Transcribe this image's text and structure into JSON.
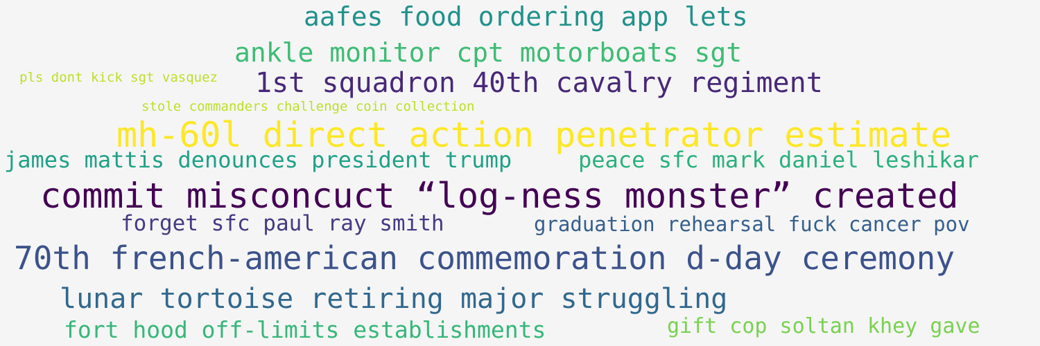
{
  "words": [
    {
      "text": "aafes food ordering app lets",
      "color": "#21918c"
    },
    {
      "text": "ankle monitor cpt motorboats sgt",
      "color": "#3dbc74"
    },
    {
      "text": "pls dont kick sgt vasquez",
      "color": "#bddf26"
    },
    {
      "text": "1st squadron 40th cavalry regiment",
      "color": "#482878"
    },
    {
      "text": "stole commanders challenge coin collection",
      "color": "#bddf26"
    },
    {
      "text": "mh-60l direct action penetrator estimate",
      "color": "#fde725"
    },
    {
      "text": "james mattis denounces president trump",
      "color": "#1fa187"
    },
    {
      "text": "peace sfc mark daniel leshikar",
      "color": "#2ab07f"
    },
    {
      "text": "commit misconcuct “log-ness monster” created",
      "color": "#440154"
    },
    {
      "text": "forget sfc paul ray smith",
      "color": "#443a83"
    },
    {
      "text": "graduation rehearsal fuck cancer pov",
      "color": "#355f8d"
    },
    {
      "text": "70th french-american commemoration d-day ceremony",
      "color": "#3b528b"
    },
    {
      "text": "lunar tortoise retiring major struggling",
      "color": "#31688e"
    },
    {
      "text": "fort hood off-limits establishments",
      "color": "#35b779"
    },
    {
      "text": "gift cop soltan khey gave",
      "color": "#7ad151"
    }
  ]
}
